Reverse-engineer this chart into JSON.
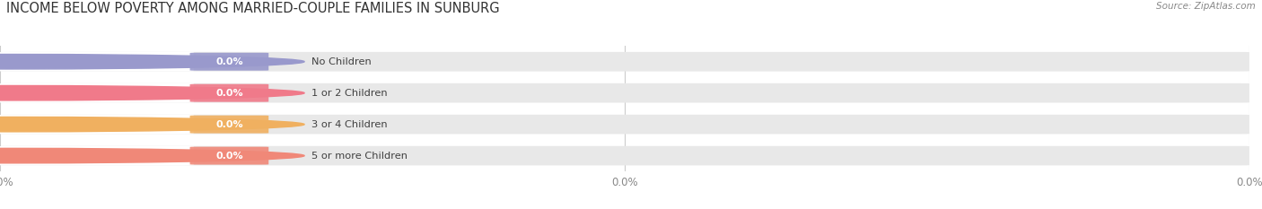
{
  "title": "INCOME BELOW POVERTY AMONG MARRIED-COUPLE FAMILIES IN SUNBURG",
  "source": "Source: ZipAtlas.com",
  "categories": [
    "No Children",
    "1 or 2 Children",
    "3 or 4 Children",
    "5 or more Children"
  ],
  "values": [
    0.0,
    0.0,
    0.0,
    0.0
  ],
  "bar_colors": [
    "#9999cc",
    "#f07a8a",
    "#f0b060",
    "#f08878"
  ],
  "background_color": "#ffffff",
  "bar_bg_color": "#e8e8e8",
  "title_fontsize": 10.5,
  "bar_height": 0.62,
  "figsize": [
    14.06,
    2.33
  ]
}
